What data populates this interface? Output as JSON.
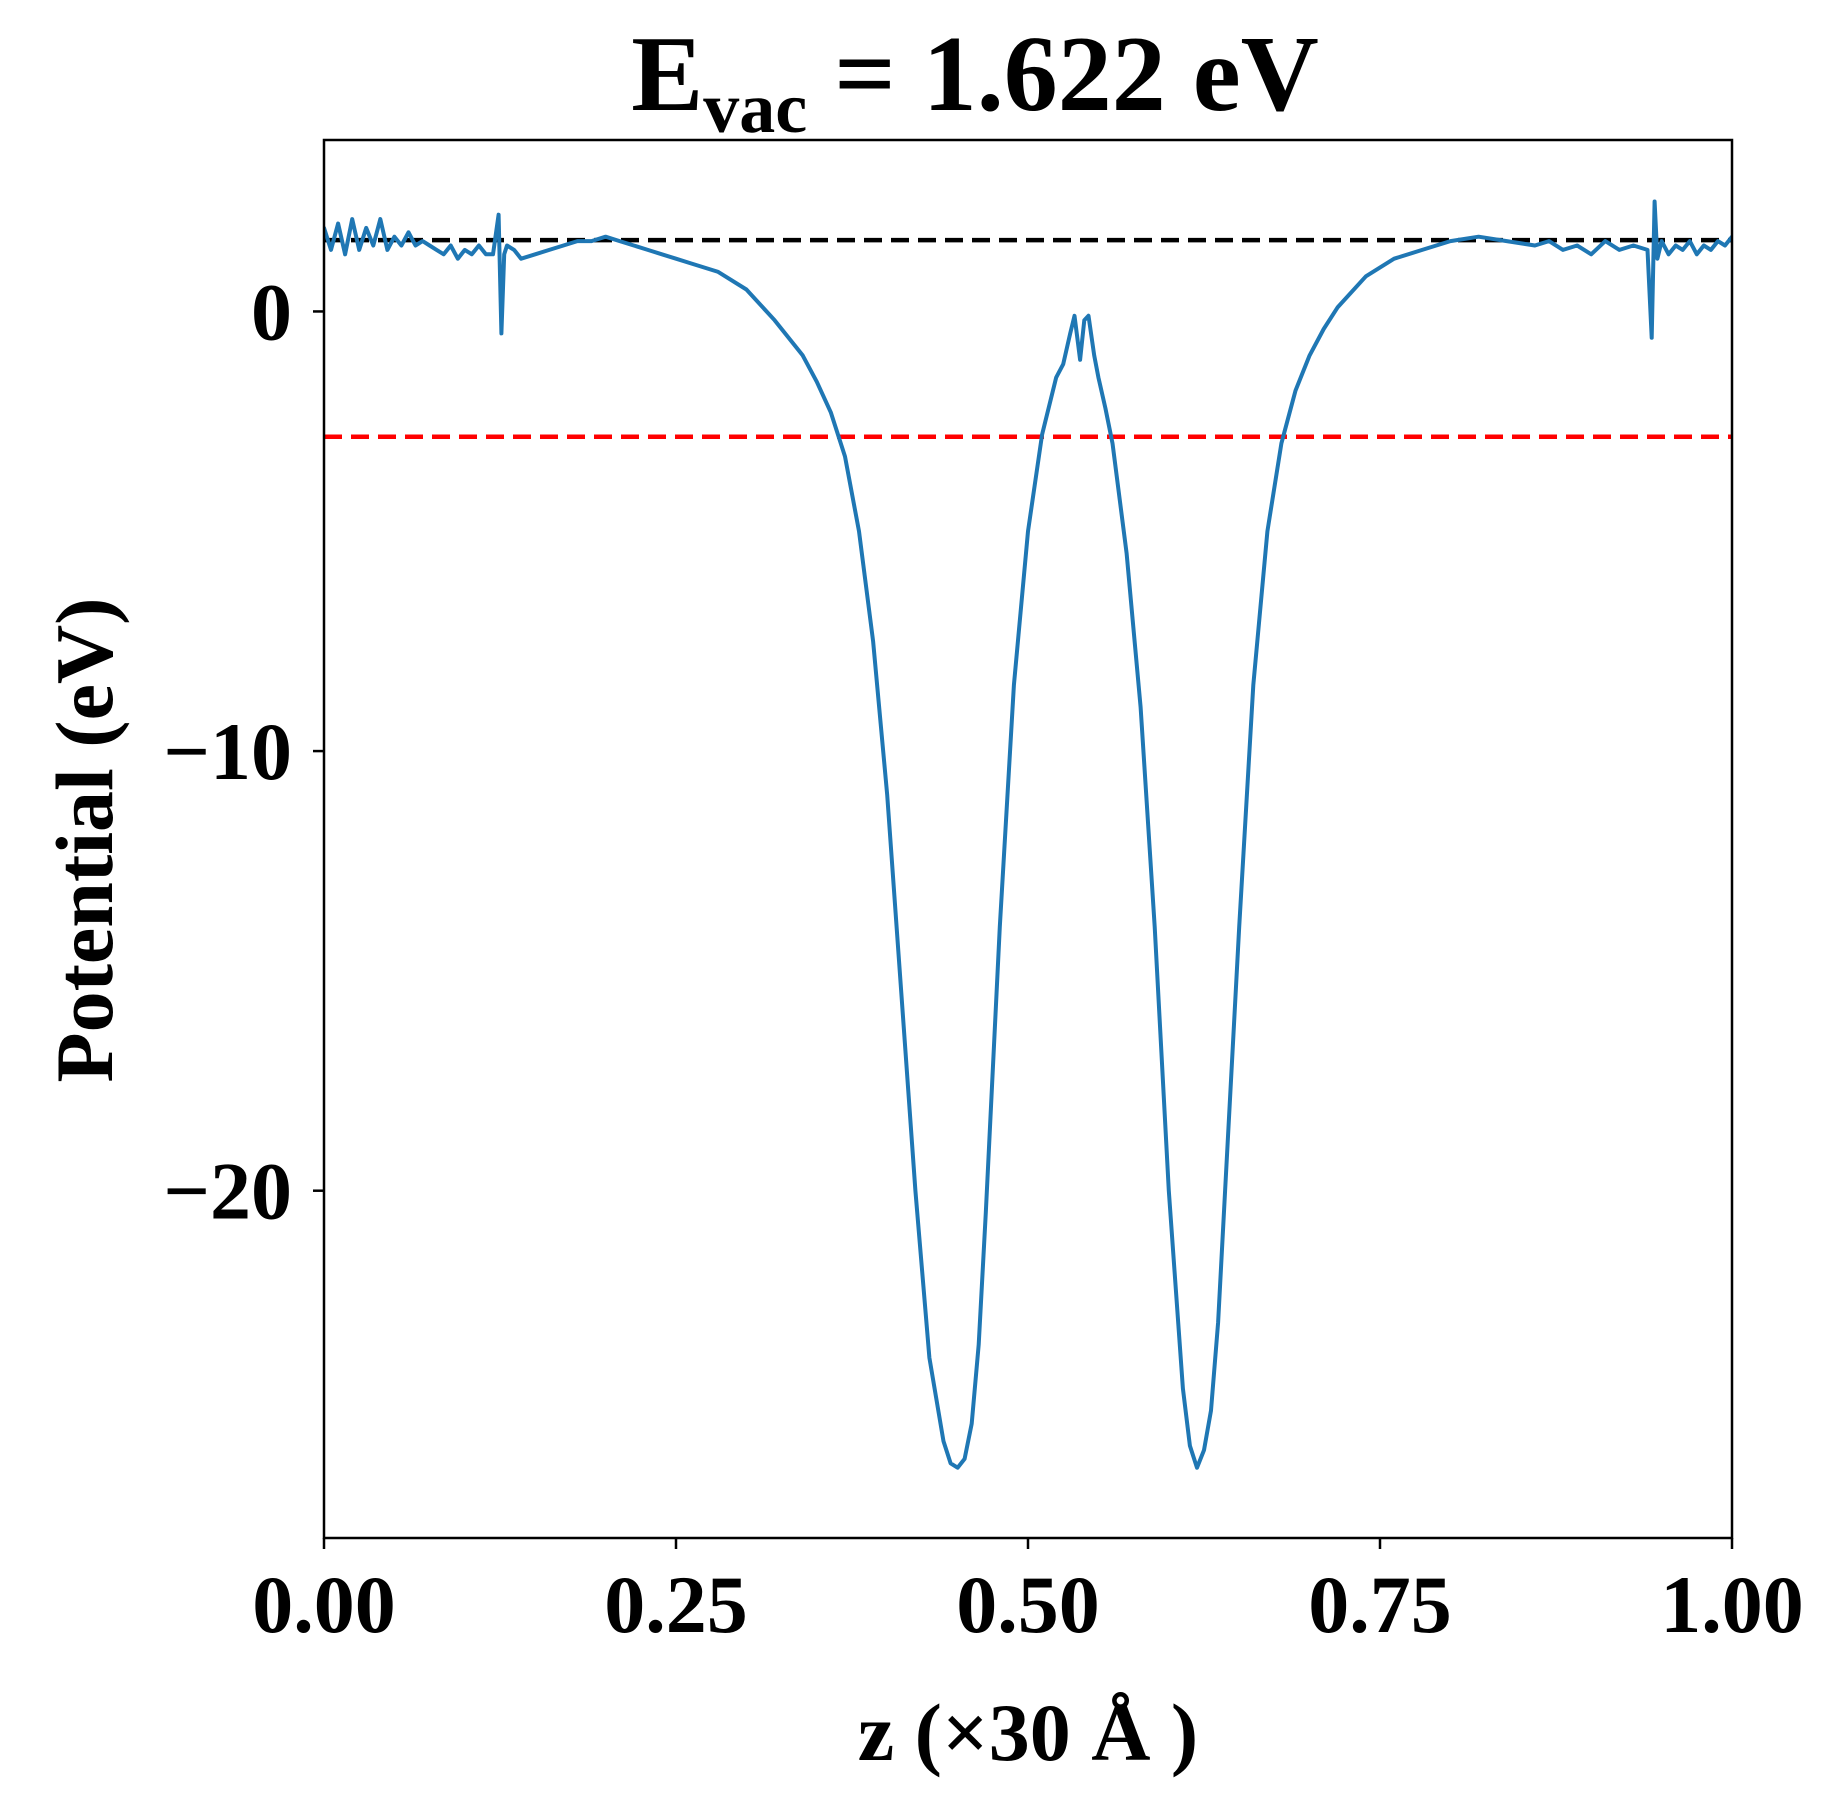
{
  "chart_data": {
    "type": "line",
    "title": {
      "main": "E",
      "subscript": "vac",
      "suffix": " = 1.622 eV"
    },
    "xlabel": "z (×30 Å )",
    "ylabel": "Potential (eV)",
    "xlim": [
      0,
      1
    ],
    "ylim": [
      -27.9,
      3.9
    ],
    "xticks": [
      {
        "value": 0,
        "label": "0.00"
      },
      {
        "value": 0.25,
        "label": "0.25"
      },
      {
        "value": 0.5,
        "label": "0.50"
      },
      {
        "value": 0.75,
        "label": "0.75"
      },
      {
        "value": 1,
        "label": "1.00"
      }
    ],
    "yticks": [
      {
        "value": 0,
        "label": "0"
      },
      {
        "value": -10,
        "label": "−10"
      },
      {
        "value": -20,
        "label": "−20"
      }
    ],
    "grid": false,
    "legend": "none",
    "reference_lines": [
      {
        "y": 1.622,
        "color": "#000000",
        "style": "dashed"
      },
      {
        "y": -2.85,
        "color": "#ff0000",
        "style": "dashed"
      }
    ],
    "series": [
      {
        "color": "#1f77b4",
        "x": [
          0.0,
          0.005,
          0.01,
          0.015,
          0.02,
          0.025,
          0.03,
          0.035,
          0.04,
          0.045,
          0.05,
          0.055,
          0.06,
          0.065,
          0.07,
          0.075,
          0.08,
          0.085,
          0.09,
          0.095,
          0.1,
          0.105,
          0.11,
          0.115,
          0.12,
          0.124,
          0.126,
          0.128,
          0.13,
          0.135,
          0.14,
          0.15,
          0.16,
          0.17,
          0.18,
          0.19,
          0.2,
          0.21,
          0.22,
          0.23,
          0.24,
          0.25,
          0.26,
          0.28,
          0.3,
          0.32,
          0.34,
          0.35,
          0.36,
          0.37,
          0.38,
          0.39,
          0.4,
          0.41,
          0.42,
          0.43,
          0.44,
          0.445,
          0.45,
          0.455,
          0.46,
          0.465,
          0.47,
          0.48,
          0.49,
          0.5,
          0.51,
          0.52,
          0.525,
          0.53,
          0.533,
          0.537,
          0.54,
          0.543,
          0.547,
          0.55,
          0.555,
          0.56,
          0.57,
          0.58,
          0.59,
          0.6,
          0.61,
          0.615,
          0.62,
          0.625,
          0.63,
          0.635,
          0.64,
          0.65,
          0.66,
          0.67,
          0.68,
          0.69,
          0.7,
          0.71,
          0.72,
          0.74,
          0.76,
          0.78,
          0.8,
          0.82,
          0.84,
          0.86,
          0.87,
          0.88,
          0.89,
          0.9,
          0.91,
          0.92,
          0.93,
          0.94,
          0.943,
          0.945,
          0.947,
          0.95,
          0.955,
          0.96,
          0.965,
          0.97,
          0.975,
          0.98,
          0.985,
          0.99,
          0.995,
          1.0
        ],
        "y": [
          1.9,
          1.4,
          2.0,
          1.3,
          2.1,
          1.4,
          1.9,
          1.5,
          2.1,
          1.4,
          1.7,
          1.5,
          1.8,
          1.5,
          1.6,
          1.5,
          1.4,
          1.3,
          1.5,
          1.2,
          1.4,
          1.3,
          1.5,
          1.3,
          1.3,
          2.2,
          -0.5,
          1.3,
          1.5,
          1.4,
          1.2,
          1.3,
          1.4,
          1.5,
          1.6,
          1.6,
          1.7,
          1.6,
          1.5,
          1.4,
          1.3,
          1.2,
          1.1,
          0.9,
          0.5,
          -0.2,
          -1.0,
          -1.6,
          -2.3,
          -3.3,
          -5.0,
          -7.5,
          -11.0,
          -15.5,
          -20.0,
          -23.8,
          -25.7,
          -26.2,
          -26.3,
          -26.1,
          -25.3,
          -23.5,
          -20.5,
          -14.0,
          -8.5,
          -5.0,
          -2.8,
          -1.5,
          -1.2,
          -0.5,
          -0.1,
          -1.1,
          -0.2,
          -0.1,
          -1.0,
          -1.5,
          -2.2,
          -3.0,
          -5.5,
          -9.0,
          -14.0,
          -20.0,
          -24.5,
          -25.8,
          -26.3,
          -25.9,
          -25.0,
          -23.0,
          -20.0,
          -14.0,
          -8.5,
          -5.0,
          -3.0,
          -1.8,
          -1.0,
          -0.4,
          0.1,
          0.8,
          1.2,
          1.4,
          1.6,
          1.7,
          1.6,
          1.5,
          1.6,
          1.4,
          1.5,
          1.3,
          1.6,
          1.4,
          1.5,
          1.4,
          -0.6,
          2.5,
          1.2,
          1.6,
          1.3,
          1.5,
          1.4,
          1.6,
          1.3,
          1.5,
          1.4,
          1.6,
          1.5,
          1.7
        ]
      }
    ]
  }
}
